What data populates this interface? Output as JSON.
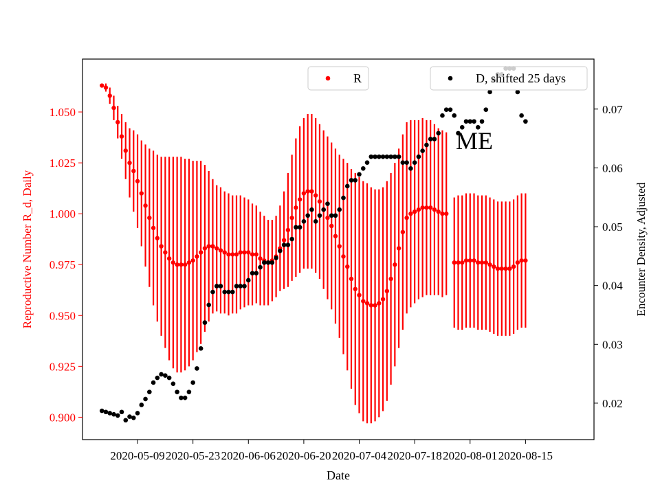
{
  "chart_data": {
    "type": "scatter",
    "xlabel": "Date",
    "ylabel_left": "Reproductive Number R_d, Daily",
    "ylabel_right": "Encounter Density, Adjusted",
    "annotation": "ME",
    "x_ticks": [
      "2020-05-09",
      "2020-05-23",
      "2020-06-06",
      "2020-06-20",
      "2020-07-04",
      "2020-07-18",
      "2020-08-01",
      "2020-08-15"
    ],
    "x_tick_day_offsets": [
      0,
      14,
      28,
      42,
      56,
      70,
      84,
      98
    ],
    "x_range_days": [
      -13.9,
      115.3
    ],
    "left_axis": {
      "range": [
        0.889,
        1.076
      ],
      "ticks": [
        0.9,
        0.925,
        0.95,
        0.975,
        1.0,
        1.025,
        1.05
      ],
      "tick_labels": [
        "0.900",
        "0.925",
        "0.950",
        "0.975",
        "1.000",
        "1.025",
        "1.050"
      ],
      "color": "#ff0000"
    },
    "right_axis": {
      "range": [
        0.0138,
        0.0785
      ],
      "ticks": [
        0.02,
        0.03,
        0.04,
        0.05,
        0.06,
        0.07
      ],
      "tick_labels": [
        "0.02",
        "0.03",
        "0.04",
        "0.05",
        "0.06",
        "0.07"
      ],
      "color": "#000000"
    },
    "legend": {
      "left_entry": "R",
      "right_entry": "D, shifted 25 days",
      "placement": "top"
    },
    "series": [
      {
        "name": "R",
        "axis": "left",
        "color": "#ff0000",
        "start_day_offset": -9,
        "values": [
          1.063,
          1.062,
          1.058,
          1.052,
          1.045,
          1.038,
          1.031,
          1.025,
          1.021,
          1.016,
          1.01,
          1.004,
          0.998,
          0.993,
          0.988,
          0.984,
          0.981,
          0.978,
          0.976,
          0.975,
          0.975,
          0.975,
          0.976,
          0.977,
          0.979,
          0.981,
          0.983,
          0.984,
          0.984,
          0.983,
          0.982,
          0.981,
          0.98,
          0.98,
          0.98,
          0.981,
          0.981,
          0.981,
          0.98,
          0.98,
          0.978,
          0.977,
          0.976,
          0.977,
          0.979,
          0.983,
          0.987,
          0.992,
          0.998,
          1.003,
          1.007,
          1.01,
          1.011,
          1.011,
          1.009,
          1.006,
          1.002,
          0.998,
          0.994,
          0.989,
          0.984,
          0.979,
          0.974,
          0.968,
          0.963,
          0.96,
          0.957,
          0.956,
          0.955,
          0.955,
          0.956,
          0.958,
          0.962,
          0.968,
          0.975,
          0.983,
          0.991,
          0.998,
          1.0,
          1.001,
          1.002,
          1.003,
          1.003,
          1.003,
          1.002,
          1.001,
          1.0,
          1.0,
          null,
          0.976,
          0.976,
          0.976,
          0.977,
          0.977,
          0.977,
          0.976,
          0.976,
          0.976,
          0.975,
          0.974,
          0.973,
          0.973,
          0.973,
          0.973,
          0.974,
          0.976,
          0.977,
          0.977
        ],
        "errors": [
          0.0,
          0.002,
          0.004,
          0.006,
          0.008,
          0.011,
          0.014,
          0.017,
          0.02,
          0.023,
          0.026,
          0.03,
          0.034,
          0.038,
          0.041,
          0.044,
          0.047,
          0.05,
          0.052,
          0.053,
          0.053,
          0.052,
          0.051,
          0.049,
          0.047,
          0.045,
          0.041,
          0.037,
          0.033,
          0.031,
          0.031,
          0.03,
          0.03,
          0.029,
          0.029,
          0.028,
          0.027,
          0.026,
          0.025,
          0.024,
          0.023,
          0.022,
          0.021,
          0.02,
          0.02,
          0.021,
          0.024,
          0.028,
          0.031,
          0.034,
          0.036,
          0.037,
          0.038,
          0.038,
          0.038,
          0.038,
          0.039,
          0.04,
          0.041,
          0.043,
          0.045,
          0.048,
          0.051,
          0.054,
          0.057,
          0.058,
          0.059,
          0.059,
          0.058,
          0.057,
          0.056,
          0.055,
          0.054,
          0.052,
          0.05,
          0.049,
          0.048,
          0.047,
          0.046,
          0.045,
          0.044,
          0.044,
          0.043,
          0.043,
          0.042,
          0.041,
          0.041,
          0.04,
          null,
          0.032,
          0.033,
          0.033,
          0.033,
          0.033,
          0.033,
          0.033,
          0.033,
          0.033,
          0.033,
          0.033,
          0.033,
          0.033,
          0.033,
          0.033,
          0.033,
          0.033,
          0.033,
          0.033
        ]
      },
      {
        "name": "D, shifted 25 days",
        "axis": "right",
        "color": "#000000",
        "start_day_offset": -9,
        "values": [
          0.0187,
          0.0185,
          0.0183,
          0.0181,
          0.0179,
          0.0185,
          0.0171,
          0.0177,
          0.0175,
          0.0183,
          0.0197,
          0.0207,
          0.0219,
          0.0235,
          0.0243,
          0.0249,
          0.0247,
          0.0243,
          0.0233,
          0.0219,
          0.0209,
          0.0209,
          0.0219,
          0.0235,
          0.0259,
          0.0293,
          0.0337,
          0.0367,
          0.0389,
          0.0399,
          0.0399,
          0.0389,
          0.0389,
          0.0389,
          0.0399,
          0.0399,
          0.0399,
          0.0409,
          0.0421,
          0.0421,
          0.0431,
          0.0439,
          0.0439,
          0.0439,
          0.0447,
          0.0459,
          0.0469,
          0.0469,
          0.0479,
          0.0499,
          0.0499,
          0.0509,
          0.0519,
          0.0529,
          0.0509,
          0.0519,
          0.0529,
          0.0539,
          0.0519,
          0.0519,
          0.0529,
          0.0549,
          0.0569,
          0.0579,
          0.0579,
          0.0589,
          0.0599,
          0.0609,
          0.0619,
          0.0619,
          0.0619,
          0.0619,
          0.0619,
          0.0619,
          0.0619,
          0.0619,
          0.0609,
          0.0609,
          0.0599,
          0.0609,
          0.0619,
          0.0629,
          0.0639,
          0.0649,
          0.0649,
          0.0659,
          0.0689,
          0.0699,
          0.0699,
          0.0689,
          0.0659,
          0.0669,
          0.0679,
          0.0679,
          0.0679,
          0.0669,
          0.0679,
          0.0699,
          0.0729,
          0.0749,
          0.0759,
          0.0759,
          0.0769,
          0.0769,
          0.0769,
          0.0729,
          0.0689,
          0.0679
        ]
      }
    ]
  }
}
